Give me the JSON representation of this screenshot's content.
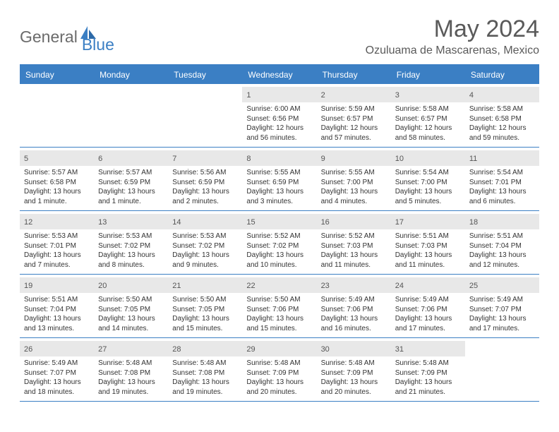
{
  "brand": {
    "part1": "General",
    "part2": "Blue"
  },
  "title": "May 2024",
  "location": "Ozuluama de Mascarenas, Mexico",
  "colors": {
    "header_bg": "#3b7fc4",
    "header_text": "#ffffff",
    "daynum_bg": "#e8e8e8",
    "border": "#3b7fc4",
    "title_color": "#5a5a5a",
    "text_color": "#333333"
  },
  "day_headers": [
    "Sunday",
    "Monday",
    "Tuesday",
    "Wednesday",
    "Thursday",
    "Friday",
    "Saturday"
  ],
  "weeks": [
    [
      null,
      null,
      null,
      {
        "n": "1",
        "sr": "6:00 AM",
        "ss": "6:56 PM",
        "dl": "12 hours and 56 minutes."
      },
      {
        "n": "2",
        "sr": "5:59 AM",
        "ss": "6:57 PM",
        "dl": "12 hours and 57 minutes."
      },
      {
        "n": "3",
        "sr": "5:58 AM",
        "ss": "6:57 PM",
        "dl": "12 hours and 58 minutes."
      },
      {
        "n": "4",
        "sr": "5:58 AM",
        "ss": "6:58 PM",
        "dl": "12 hours and 59 minutes."
      }
    ],
    [
      {
        "n": "5",
        "sr": "5:57 AM",
        "ss": "6:58 PM",
        "dl": "13 hours and 1 minute."
      },
      {
        "n": "6",
        "sr": "5:57 AM",
        "ss": "6:59 PM",
        "dl": "13 hours and 1 minute."
      },
      {
        "n": "7",
        "sr": "5:56 AM",
        "ss": "6:59 PM",
        "dl": "13 hours and 2 minutes."
      },
      {
        "n": "8",
        "sr": "5:55 AM",
        "ss": "6:59 PM",
        "dl": "13 hours and 3 minutes."
      },
      {
        "n": "9",
        "sr": "5:55 AM",
        "ss": "7:00 PM",
        "dl": "13 hours and 4 minutes."
      },
      {
        "n": "10",
        "sr": "5:54 AM",
        "ss": "7:00 PM",
        "dl": "13 hours and 5 minutes."
      },
      {
        "n": "11",
        "sr": "5:54 AM",
        "ss": "7:01 PM",
        "dl": "13 hours and 6 minutes."
      }
    ],
    [
      {
        "n": "12",
        "sr": "5:53 AM",
        "ss": "7:01 PM",
        "dl": "13 hours and 7 minutes."
      },
      {
        "n": "13",
        "sr": "5:53 AM",
        "ss": "7:02 PM",
        "dl": "13 hours and 8 minutes."
      },
      {
        "n": "14",
        "sr": "5:53 AM",
        "ss": "7:02 PM",
        "dl": "13 hours and 9 minutes."
      },
      {
        "n": "15",
        "sr": "5:52 AM",
        "ss": "7:02 PM",
        "dl": "13 hours and 10 minutes."
      },
      {
        "n": "16",
        "sr": "5:52 AM",
        "ss": "7:03 PM",
        "dl": "13 hours and 11 minutes."
      },
      {
        "n": "17",
        "sr": "5:51 AM",
        "ss": "7:03 PM",
        "dl": "13 hours and 11 minutes."
      },
      {
        "n": "18",
        "sr": "5:51 AM",
        "ss": "7:04 PM",
        "dl": "13 hours and 12 minutes."
      }
    ],
    [
      {
        "n": "19",
        "sr": "5:51 AM",
        "ss": "7:04 PM",
        "dl": "13 hours and 13 minutes."
      },
      {
        "n": "20",
        "sr": "5:50 AM",
        "ss": "7:05 PM",
        "dl": "13 hours and 14 minutes."
      },
      {
        "n": "21",
        "sr": "5:50 AM",
        "ss": "7:05 PM",
        "dl": "13 hours and 15 minutes."
      },
      {
        "n": "22",
        "sr": "5:50 AM",
        "ss": "7:06 PM",
        "dl": "13 hours and 15 minutes."
      },
      {
        "n": "23",
        "sr": "5:49 AM",
        "ss": "7:06 PM",
        "dl": "13 hours and 16 minutes."
      },
      {
        "n": "24",
        "sr": "5:49 AM",
        "ss": "7:06 PM",
        "dl": "13 hours and 17 minutes."
      },
      {
        "n": "25",
        "sr": "5:49 AM",
        "ss": "7:07 PM",
        "dl": "13 hours and 17 minutes."
      }
    ],
    [
      {
        "n": "26",
        "sr": "5:49 AM",
        "ss": "7:07 PM",
        "dl": "13 hours and 18 minutes."
      },
      {
        "n": "27",
        "sr": "5:48 AM",
        "ss": "7:08 PM",
        "dl": "13 hours and 19 minutes."
      },
      {
        "n": "28",
        "sr": "5:48 AM",
        "ss": "7:08 PM",
        "dl": "13 hours and 19 minutes."
      },
      {
        "n": "29",
        "sr": "5:48 AM",
        "ss": "7:09 PM",
        "dl": "13 hours and 20 minutes."
      },
      {
        "n": "30",
        "sr": "5:48 AM",
        "ss": "7:09 PM",
        "dl": "13 hours and 20 minutes."
      },
      {
        "n": "31",
        "sr": "5:48 AM",
        "ss": "7:09 PM",
        "dl": "13 hours and 21 minutes."
      },
      null
    ]
  ],
  "labels": {
    "sunrise": "Sunrise: ",
    "sunset": "Sunset: ",
    "daylight": "Daylight: "
  }
}
